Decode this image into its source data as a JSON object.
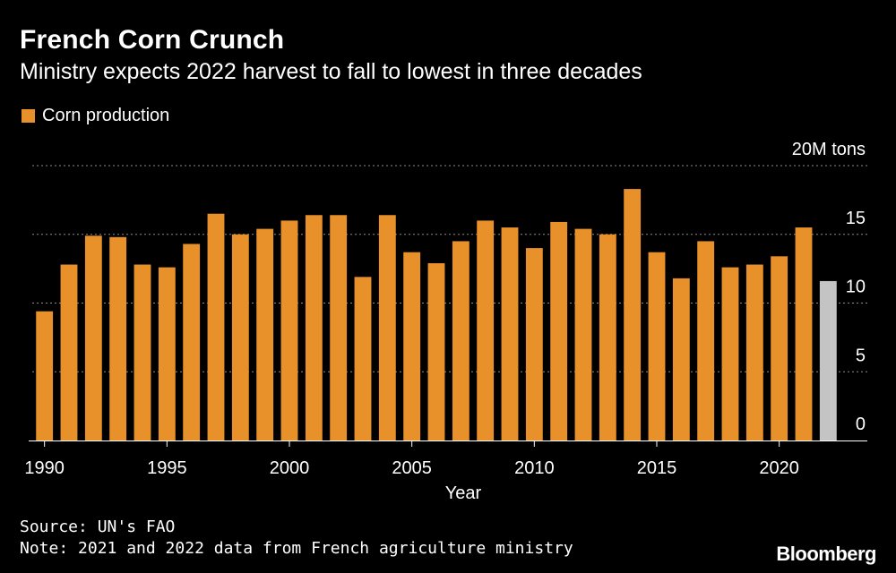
{
  "header": {
    "title": "French Corn Crunch",
    "subtitle": "Ministry expects 2022 harvest to fall to lowest in three decades"
  },
  "legend": {
    "label": "Corn production"
  },
  "colors": {
    "bar": "#e8912b",
    "highlight": "#c4c4c4",
    "grid": "#8c8c8c",
    "background": "#000000",
    "text": "#ffffff"
  },
  "chart_data": {
    "type": "bar",
    "title": "French Corn Crunch",
    "subtitle": "Ministry expects 2022 harvest to fall to lowest in three decades",
    "xlabel": "Year",
    "ylabel": "20M tons",
    "categories": [
      1990,
      1991,
      1992,
      1993,
      1994,
      1995,
      1996,
      1997,
      1998,
      1999,
      2000,
      2001,
      2002,
      2003,
      2004,
      2005,
      2006,
      2007,
      2008,
      2009,
      2010,
      2011,
      2012,
      2013,
      2014,
      2015,
      2016,
      2017,
      2018,
      2019,
      2020,
      2021,
      2022
    ],
    "series": [
      {
        "name": "Corn production",
        "values": [
          9.4,
          12.8,
          14.9,
          14.8,
          12.8,
          12.6,
          14.3,
          16.5,
          15.0,
          15.4,
          16.0,
          16.4,
          16.4,
          11.9,
          16.4,
          13.7,
          12.9,
          14.5,
          16.0,
          15.5,
          14.0,
          15.9,
          15.4,
          15.0,
          18.3,
          13.7,
          11.8,
          14.5,
          12.6,
          12.8,
          13.4,
          15.5,
          11.6
        ]
      }
    ],
    "highlight": [
      2022
    ],
    "ylim": [
      0,
      20
    ],
    "yticks": [
      "0",
      "5",
      "10",
      "15",
      "20M tons"
    ],
    "xticks": [
      "1990",
      "1995",
      "2000",
      "2005",
      "2010",
      "2015",
      "2020"
    ],
    "grid": true,
    "legend_position": "top-left"
  },
  "footer": {
    "source": "Source: UN's FAO",
    "note": "Note: 2021 and 2022 data from French agriculture ministry",
    "brand": "Bloomberg"
  }
}
